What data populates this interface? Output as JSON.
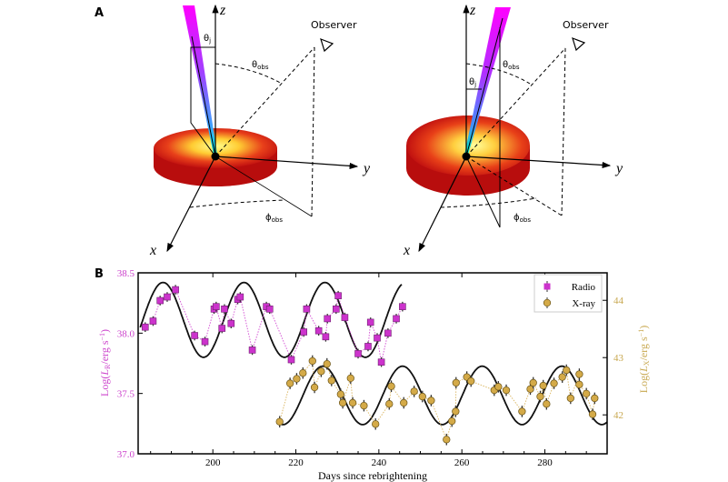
{
  "panel_a": {
    "label": "A",
    "axis_labels": {
      "z": "z",
      "y": "y",
      "x": "x"
    },
    "observer_label": "Observer",
    "theta_jet": {
      "base": "θ",
      "sub": "j"
    },
    "theta_obs": {
      "base": "θ",
      "sub": "obs"
    },
    "phi_obs": {
      "base": "ϕ",
      "sub": "obs"
    },
    "colors": {
      "jet_top": "#ff00ff",
      "jet_bottom": "#00e5ff",
      "disk_edge": "#b80d0d",
      "disk_center": "#ffff80"
    }
  },
  "panel_b": {
    "label": "B"
  },
  "chart_data": {
    "type": "scatter",
    "xlabel": "Days since rebrightening",
    "ylabel_left": {
      "prefix": "Log(",
      "var": "L",
      "sub": "R",
      "suffix": "/erg s",
      "sup": "−1",
      "close": ")"
    },
    "ylabel_right": {
      "prefix": "Log(",
      "var": "L",
      "sub": "X",
      "suffix": "/erg s",
      "sup": "−1",
      "close": ")"
    },
    "xlim": [
      182,
      295
    ],
    "ylim_left": [
      37.0,
      38.5
    ],
    "ylim_right": [
      41.32,
      44.48
    ],
    "x_ticks": [
      "200",
      "220",
      "240",
      "260",
      "280"
    ],
    "y_ticks_left": [
      "37.0",
      "37.5",
      "38.0",
      "38.5"
    ],
    "y_ticks_right": [
      "42",
      "43",
      "44"
    ],
    "grid": false,
    "legend": {
      "position": "top-right",
      "entries": [
        "Radio",
        "X-ray"
      ]
    },
    "series": [
      {
        "name": "Radio",
        "axis": "left",
        "marker": "square",
        "color": "#cc33cc",
        "typical_yerr": 0.04,
        "x": [
          183.7,
          185.6,
          187.3,
          189,
          191,
          195.6,
          198.1,
          200.3,
          200.8,
          202.2,
          202.8,
          204.4,
          206,
          206.6,
          209.5,
          212.9,
          213.7,
          218.9,
          221.9,
          222.6,
          225.5,
          227.2,
          227.6,
          229.7,
          230.2,
          231.8,
          235,
          237.4,
          238,
          239.6,
          240.6,
          242.2,
          244.2,
          245.7
        ],
        "y": [
          38.05,
          38.1,
          38.27,
          38.3,
          38.36,
          37.98,
          37.93,
          38.2,
          38.22,
          38.04,
          38.2,
          38.08,
          38.28,
          38.3,
          37.86,
          38.22,
          38.2,
          37.78,
          38.01,
          38.2,
          38.02,
          37.97,
          38.12,
          38.2,
          38.31,
          38.13,
          37.83,
          37.89,
          38.09,
          37.96,
          37.76,
          38.0,
          38.12,
          38.22
        ],
        "model": {
          "mean": 38.11,
          "amplitude": 0.31,
          "period_days": 19.5,
          "peak_day": 188,
          "x_range": [
            182.5,
            245.5
          ]
        }
      },
      {
        "name": "X-ray",
        "axis": "right",
        "marker": "circle",
        "color": "#d4aa48",
        "typical_yerr": 0.1,
        "x": [
          216.1,
          218.6,
          220.2,
          221.7,
          224,
          224.5,
          226.1,
          227.5,
          228.6,
          230.8,
          231.3,
          233.2,
          233.7,
          236.4,
          239.2,
          242.5,
          243,
          246,
          248.5,
          250.5,
          252.6,
          256.3,
          257.6,
          258.5,
          258.6,
          261.2,
          262.2,
          267.8,
          268.8,
          270.7,
          274.5,
          276.5,
          277.2,
          278.9,
          279.6,
          280.4,
          282.2,
          284.2,
          285.2,
          286.2,
          288.3,
          288.3,
          290,
          291.5,
          292
        ],
        "y": [
          41.88,
          42.55,
          42.63,
          42.73,
          42.94,
          42.48,
          42.76,
          42.89,
          42.6,
          42.36,
          42.21,
          42.64,
          42.21,
          42.16,
          41.84,
          42.19,
          42.5,
          42.21,
          42.41,
          42.32,
          42.25,
          41.57,
          41.89,
          42.06,
          42.56,
          42.66,
          42.59,
          42.43,
          42.49,
          42.43,
          42.06,
          42.45,
          42.56,
          42.32,
          42.51,
          42.19,
          42.55,
          42.66,
          42.78,
          42.29,
          42.71,
          42.53,
          42.37,
          42.01,
          42.29
        ],
        "model": {
          "mean": 42.34,
          "amplitude": 0.51,
          "period_days": 19.2,
          "peak_day": 226.5,
          "x_range": [
            215.5,
            295
          ]
        }
      }
    ]
  }
}
